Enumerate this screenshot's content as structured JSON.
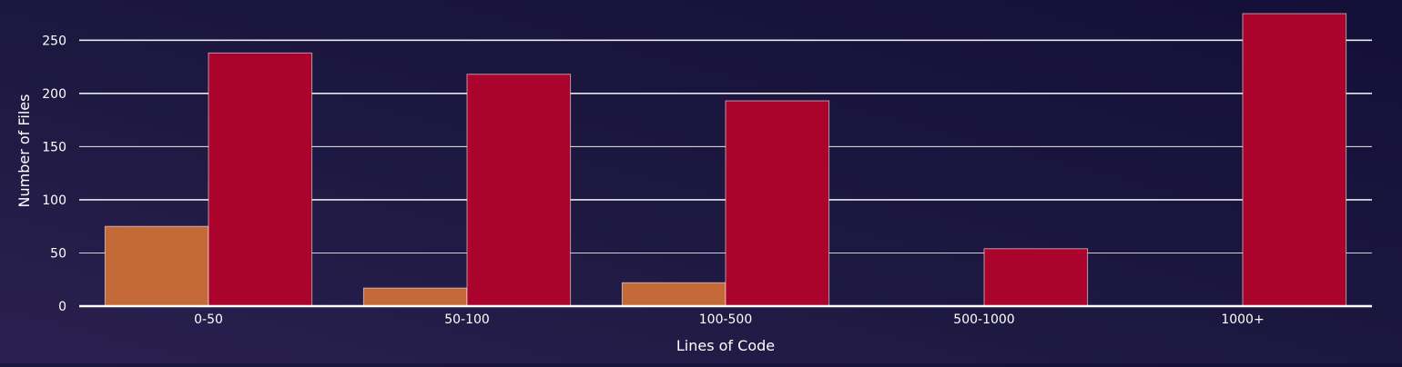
{
  "chart_data": {
    "type": "bar",
    "xlabel": "Lines of Code",
    "ylabel": "Number of Files",
    "categories": [
      "0-50",
      "50-100",
      "100-500",
      "500-1000",
      "1000+"
    ],
    "ylim": [
      0,
      275
    ],
    "yticks": [
      0,
      50,
      100,
      150,
      200,
      250
    ],
    "grid": true,
    "series": [
      {
        "values": [
          75,
          17,
          22,
          0,
          0
        ],
        "color": "#c46a38"
      },
      {
        "values": [
          238,
          218,
          193,
          54,
          275
        ],
        "color": "#ab042c"
      }
    ]
  }
}
